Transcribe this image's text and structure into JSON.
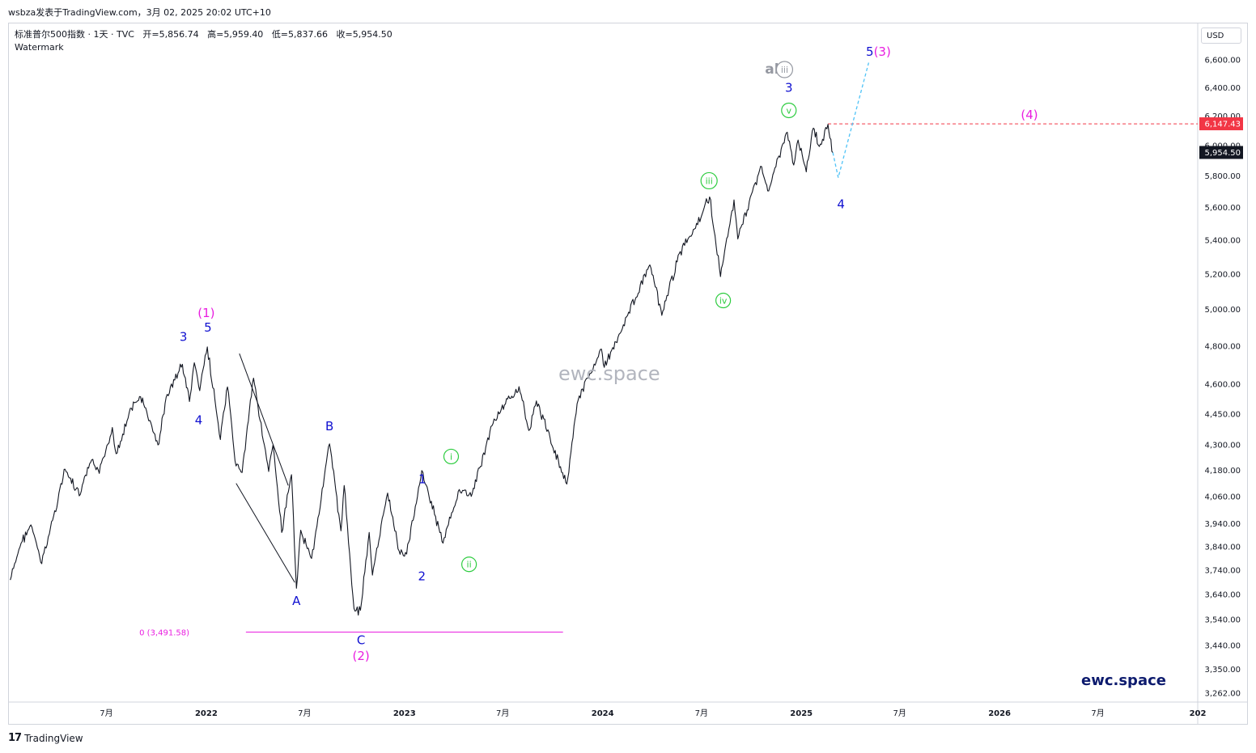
{
  "header": {
    "publisher_line": "wsbza发表于TradingView.com，3月 02, 2025 20:02 UTC+10"
  },
  "legend": {
    "symbol": "标准普尔500指数 · 1天 · TVC",
    "open": "开=5,856.74",
    "high": "高=5,959.40",
    "low": "低=5,837.66",
    "close": "收=5,954.50",
    "indicator": "Watermark"
  },
  "currency_button": "USD",
  "watermark_text": "ewc.space",
  "signature_text": "ewc.space",
  "footer": {
    "brand": "TradingView"
  },
  "colors": {
    "price_line": "#131722",
    "wave_blue": "#1010d0",
    "wave_magenta": "#e91ee0",
    "wave_green": "#2ecc40",
    "alt_gray": "#9598a1",
    "projection": "#4fc3f7",
    "target_line": "#f23645",
    "close_tag": "#131722"
  },
  "chart_data": {
    "type": "line",
    "y_axis": {
      "scale": "log",
      "ticks": [
        "6,600.00",
        "6,400.00",
        "6,200.00",
        "6,000.00",
        "5,800.00",
        "5,600.00",
        "5,400.00",
        "5,200.00",
        "5,000.00",
        "4,800.00",
        "4,600.00",
        "4,450.00",
        "4,300.00",
        "4,180.00",
        "4,060.00",
        "3,940.00",
        "3,840.00",
        "3,740.00",
        "3,640.00",
        "3,540.00",
        "3,440.00",
        "3,350.00",
        "3,262.00"
      ],
      "tick_values": [
        6600,
        6400,
        6200,
        6000,
        5800,
        5600,
        5400,
        5200,
        5000,
        4800,
        4600,
        4450,
        4300,
        4180,
        4060,
        3940,
        3840,
        3740,
        3640,
        3540,
        3440,
        3350,
        3262
      ],
      "ylim": [
        3230,
        6880
      ]
    },
    "x_axis": {
      "ticks": [
        "7月",
        "2022",
        "7月",
        "2023",
        "7月",
        "2024",
        "7月",
        "2025",
        "7月",
        "2026",
        "7月",
        "202"
      ],
      "tick_dates": [
        "2021-07-01",
        "2022-01-01",
        "2022-07-01",
        "2023-01-01",
        "2023-07-01",
        "2024-01-01",
        "2024-07-01",
        "2025-01-01",
        "2025-07-01",
        "2026-01-01",
        "2026-07-01",
        "2027-01-01"
      ],
      "bold": [
        false,
        true,
        false,
        true,
        false,
        true,
        false,
        true,
        false,
        true,
        false,
        true
      ]
    },
    "series": [
      {
        "points": [
          [
            "2021-01-05",
            3700
          ],
          [
            "2021-01-25",
            3855
          ],
          [
            "2021-02-12",
            3934
          ],
          [
            "2021-03-04",
            3768
          ],
          [
            "2021-03-26",
            3975
          ],
          [
            "2021-04-16",
            4185
          ],
          [
            "2021-05-12",
            4063
          ],
          [
            "2021-06-04",
            4229
          ],
          [
            "2021-06-18",
            4166
          ],
          [
            "2021-07-12",
            4384
          ],
          [
            "2021-07-19",
            4258
          ],
          [
            "2021-08-16",
            4479
          ],
          [
            "2021-09-02",
            4537
          ],
          [
            "2021-10-04",
            4300
          ],
          [
            "2021-10-21",
            4549
          ],
          [
            "2021-11-18",
            4704
          ],
          [
            "2021-12-01",
            4513
          ],
          [
            "2021-12-10",
            4712
          ],
          [
            "2021-12-20",
            4568
          ],
          [
            "2022-01-03",
            4796
          ],
          [
            "2022-01-27",
            4326
          ],
          [
            "2022-02-09",
            4587
          ],
          [
            "2022-02-23",
            4225
          ],
          [
            "2022-03-08",
            4170
          ],
          [
            "2022-03-29",
            4632
          ],
          [
            "2022-04-26",
            4175
          ],
          [
            "2022-05-04",
            4300
          ],
          [
            "2022-05-20",
            3901
          ],
          [
            "2022-06-07",
            4160
          ],
          [
            "2022-06-16",
            3666
          ],
          [
            "2022-06-24",
            3911
          ],
          [
            "2022-07-14",
            3790
          ],
          [
            "2022-08-16",
            4305
          ],
          [
            "2022-09-06",
            3908
          ],
          [
            "2022-09-12",
            4110
          ],
          [
            "2022-09-30",
            3585
          ],
          [
            "2022-10-12",
            3577
          ],
          [
            "2022-10-28",
            3901
          ],
          [
            "2022-11-03",
            3720
          ],
          [
            "2022-12-01",
            4076
          ],
          [
            "2022-12-22",
            3822
          ],
          [
            "2023-01-05",
            3808
          ],
          [
            "2023-02-02",
            4179
          ],
          [
            "2023-03-13",
            3855
          ],
          [
            "2023-04-12",
            4092
          ],
          [
            "2023-05-04",
            4061
          ],
          [
            "2023-06-15",
            4426
          ],
          [
            "2023-07-31",
            4588
          ],
          [
            "2023-08-18",
            4370
          ],
          [
            "2023-09-01",
            4516
          ],
          [
            "2023-10-27",
            4117
          ],
          [
            "2023-11-15",
            4502
          ],
          [
            "2023-12-28",
            4783
          ],
          [
            "2024-01-04",
            4688
          ],
          [
            "2024-03-28",
            5254
          ],
          [
            "2024-04-19",
            4967
          ],
          [
            "2024-05-21",
            5321
          ],
          [
            "2024-06-20",
            5473
          ],
          [
            "2024-07-16",
            5667
          ],
          [
            "2024-08-05",
            5186
          ],
          [
            "2024-08-30",
            5648
          ],
          [
            "2024-09-06",
            5408
          ],
          [
            "2024-10-18",
            5864
          ],
          [
            "2024-10-31",
            5705
          ],
          [
            "2024-12-06",
            6090
          ],
          [
            "2024-12-18",
            5872
          ],
          [
            "2024-12-26",
            6037
          ],
          [
            "2025-01-10",
            5827
          ],
          [
            "2025-01-23",
            6118
          ],
          [
            "2025-02-03",
            5994
          ],
          [
            "2025-02-19",
            6144
          ],
          [
            "2025-02-28",
            5954
          ]
        ]
      }
    ],
    "last_close": {
      "value": 5954.5,
      "label": "5,954.50"
    },
    "target_level": {
      "value": 6147.43,
      "label": "6,147.43",
      "from": "2025-02-19",
      "to": "2027-01-01"
    },
    "fib_level": {
      "value": 3491.58,
      "label": "0 (3,491.58)",
      "from": "2022-03-15",
      "to": "2023-10-20"
    },
    "projection_path": [
      [
        "2025-02-28",
        5954
      ],
      [
        "2025-03-10",
        5790
      ],
      [
        "2025-05-05",
        6580
      ]
    ],
    "trendlines": [
      {
        "from": [
          "2022-03-03",
          4760
        ],
        "to": [
          "2022-06-01",
          4110
        ]
      },
      {
        "from": [
          "2022-02-25",
          4120
        ],
        "to": [
          "2022-06-13",
          3690
        ]
      }
    ],
    "annotations": [
      {
        "label": "(1)",
        "date": "2022-01-01",
        "value": 4980,
        "color": "magenta",
        "style": "plain"
      },
      {
        "label": "5",
        "date": "2022-01-04",
        "value": 4900,
        "color": "blue",
        "style": "plain"
      },
      {
        "label": "3",
        "date": "2021-11-20",
        "value": 4850,
        "color": "blue",
        "style": "plain"
      },
      {
        "label": "4",
        "date": "2021-12-18",
        "value": 4420,
        "color": "blue",
        "style": "plain"
      },
      {
        "label": "A",
        "date": "2022-06-16",
        "value": 3615,
        "color": "blue",
        "style": "plain"
      },
      {
        "label": "B",
        "date": "2022-08-16",
        "value": 4390,
        "color": "blue",
        "style": "plain"
      },
      {
        "label": "C",
        "date": "2022-10-13",
        "value": 3460,
        "color": "blue",
        "style": "plain"
      },
      {
        "label": "(2)",
        "date": "2022-10-13",
        "value": 3400,
        "color": "magenta",
        "style": "plain"
      },
      {
        "label": "1",
        "date": "2023-02-03",
        "value": 4140,
        "color": "blue",
        "style": "plain"
      },
      {
        "label": "2",
        "date": "2023-02-02",
        "value": 3715,
        "color": "blue",
        "style": "plain"
      },
      {
        "label": "i",
        "date": "2023-03-28",
        "value": 4245,
        "color": "green",
        "style": "circle"
      },
      {
        "label": "ii",
        "date": "2023-04-30",
        "value": 3765,
        "color": "green",
        "style": "circle"
      },
      {
        "label": "iii",
        "date": "2024-07-15",
        "value": 5770,
        "color": "green",
        "style": "circle"
      },
      {
        "label": "iv",
        "date": "2024-08-10",
        "value": 5050,
        "color": "green",
        "style": "circle"
      },
      {
        "label": "v",
        "date": "2024-12-09",
        "value": 6240,
        "color": "green",
        "style": "circle"
      },
      {
        "label": "3",
        "date": "2024-12-09",
        "value": 6400,
        "color": "blue",
        "style": "plain"
      },
      {
        "label": "alt",
        "date": "2024-11-14",
        "value": 6530,
        "color": "gray",
        "style": "plain"
      },
      {
        "label": "iii",
        "date": "2024-12-01",
        "value": 6530,
        "color": "gray",
        "style": "circle"
      },
      {
        "label": "4",
        "date": "2025-03-15",
        "value": 5620,
        "color": "blue",
        "style": "plain"
      },
      {
        "label": "5",
        "date": "2025-05-07",
        "value": 6660,
        "color": "blue",
        "style": "plain"
      },
      {
        "label": "(3)",
        "date": "2025-05-30",
        "value": 6660,
        "color": "magenta",
        "style": "plain"
      },
      {
        "label": "(4)",
        "date": "2026-02-25",
        "value": 6210,
        "color": "magenta",
        "style": "plain"
      }
    ]
  }
}
